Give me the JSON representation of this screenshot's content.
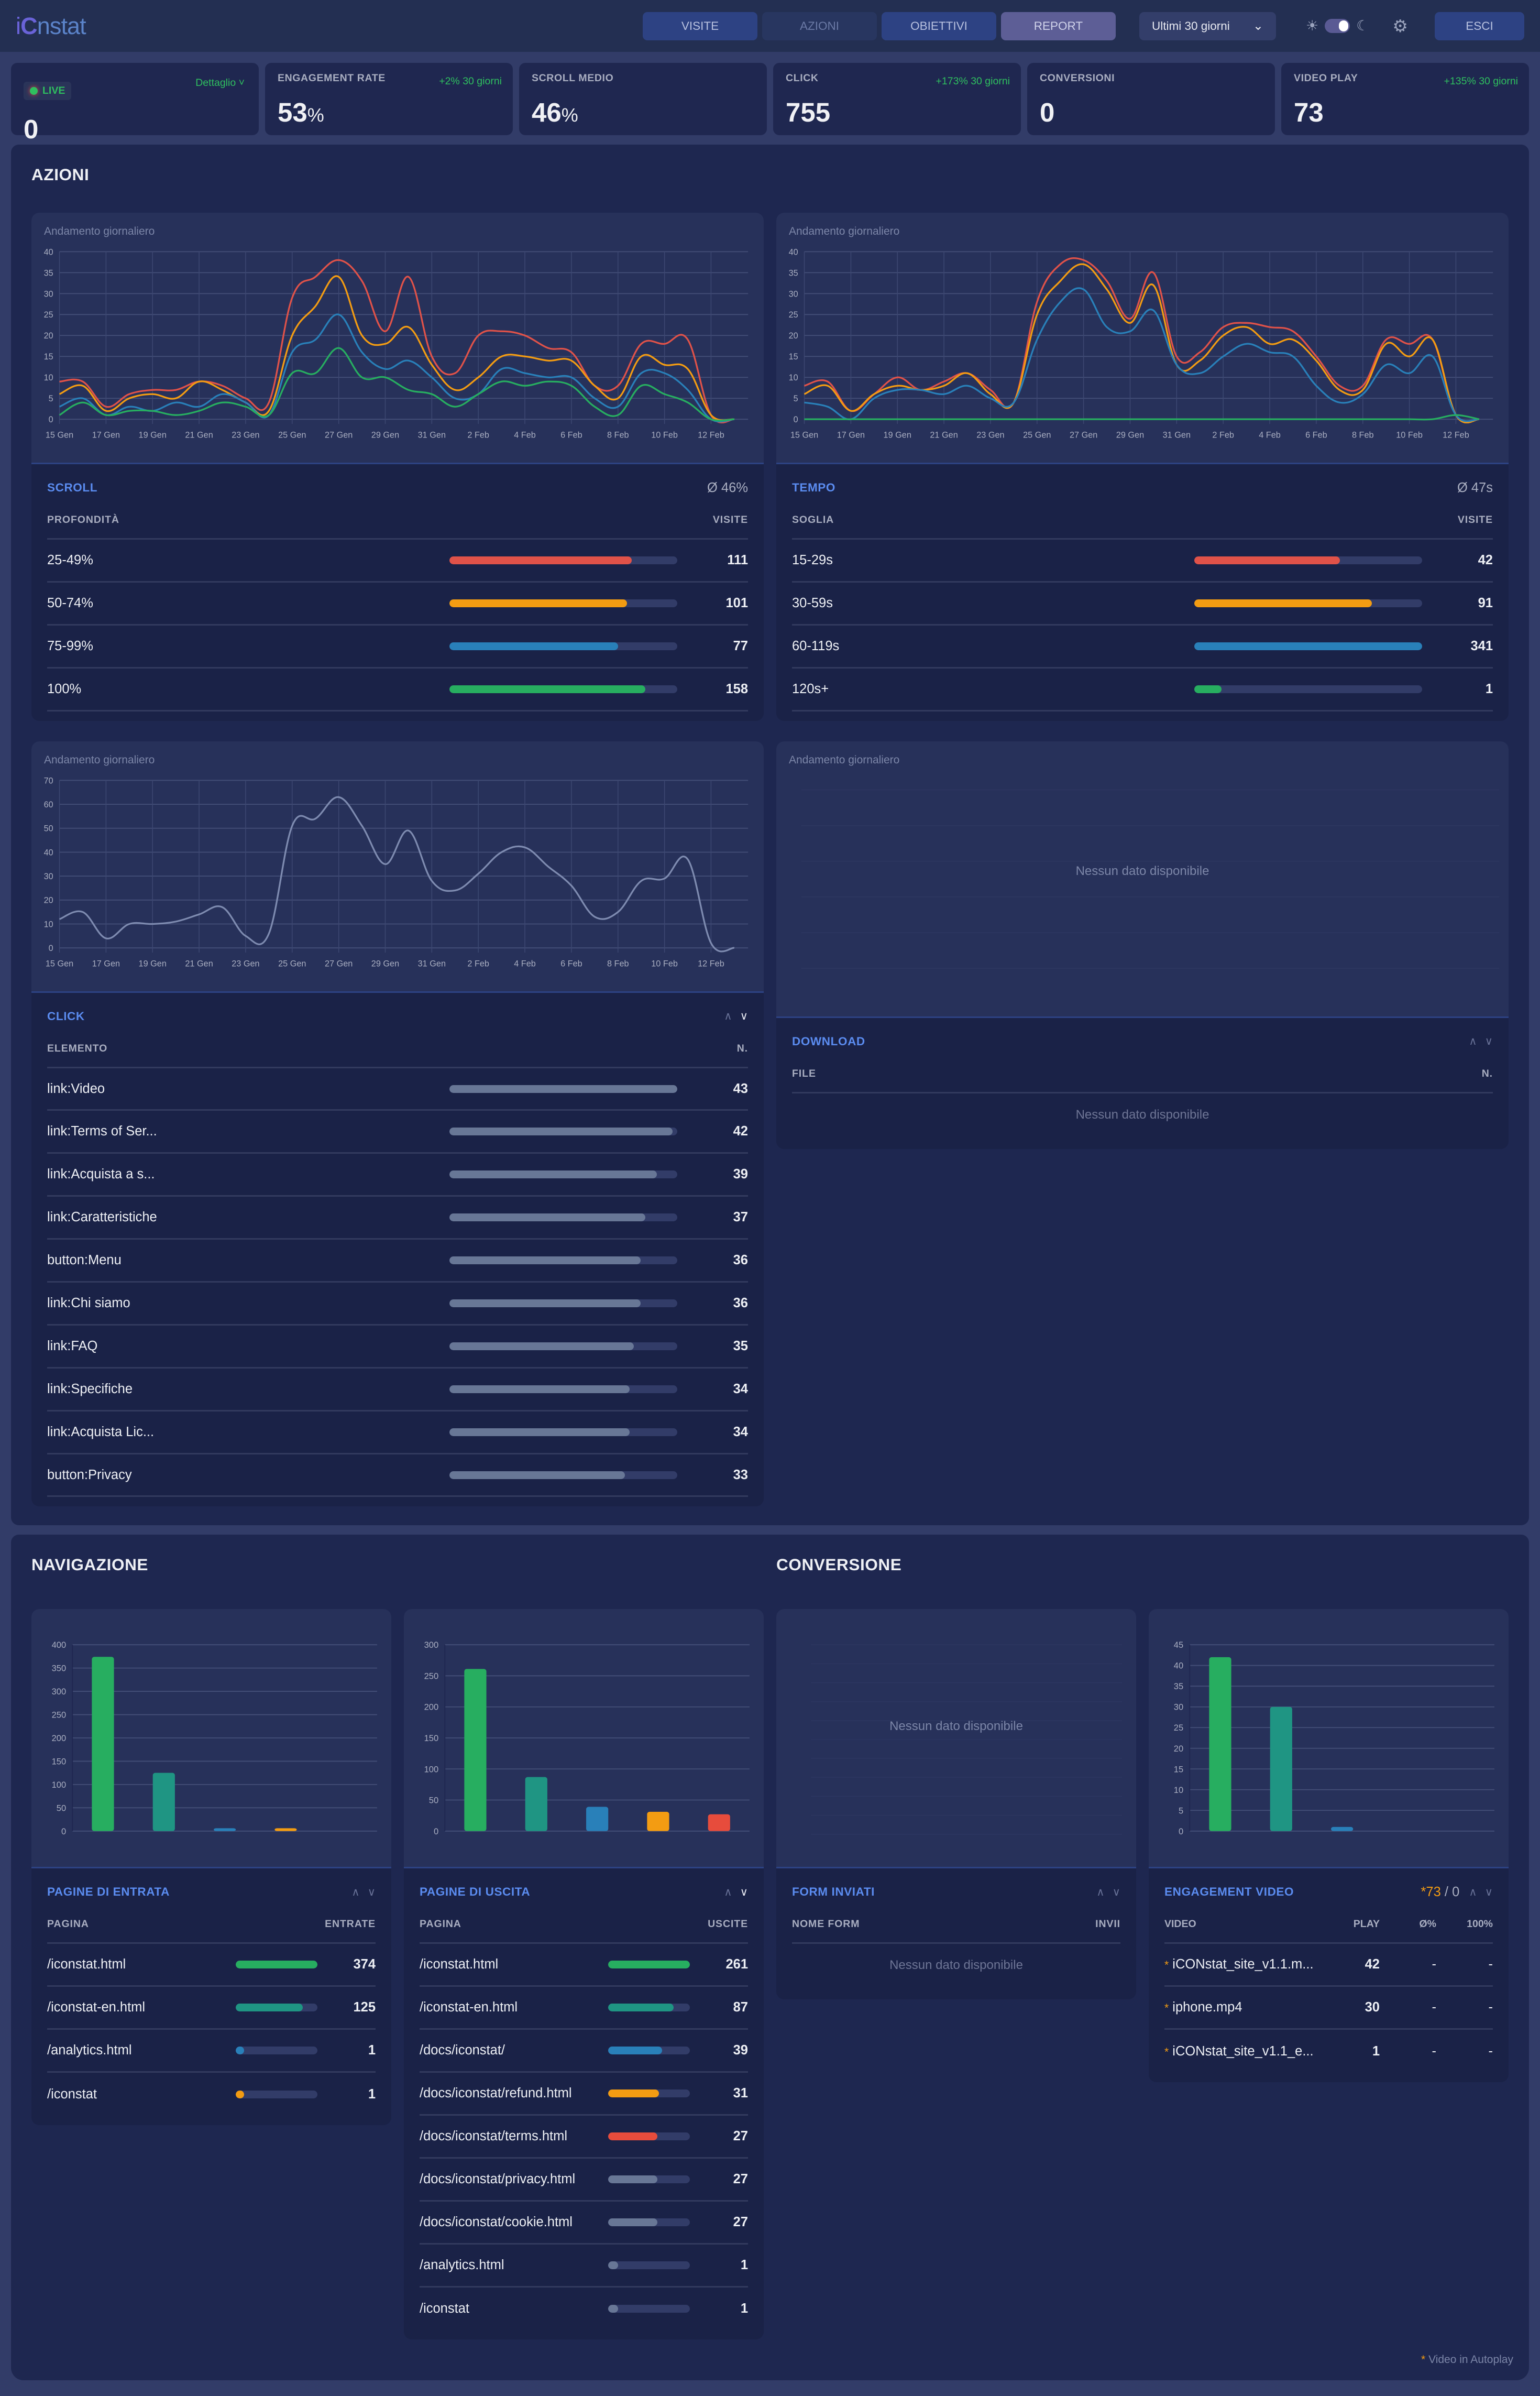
{
  "header": {
    "logo": {
      "i": "i",
      "c": "C",
      "rest": "nstat"
    },
    "tabs": [
      {
        "label": "VISITE",
        "key": "visite"
      },
      {
        "label": "AZIONI",
        "key": "azioni",
        "active": true
      },
      {
        "label": "OBIETTIVI",
        "key": "obiettivi"
      },
      {
        "label": "REPORT",
        "key": "report"
      }
    ],
    "range": {
      "value": "Ultimi 30 giorni",
      "icon": "chevron-down-icon"
    },
    "theme": {
      "sun_icon": "☀",
      "moon_icon": "☾",
      "state": "dark"
    },
    "settings_icon": "⚙",
    "logout_label": "ESCI"
  },
  "kpis": [
    {
      "key": "live",
      "label": "LIVE",
      "detail": "Dettaglio ˅",
      "value": "0"
    },
    {
      "key": "engagement",
      "label": "ENGAGEMENT RATE",
      "trend": "+2% 30 giorni",
      "value": "53",
      "unit": "%"
    },
    {
      "key": "scroll",
      "label": "SCROLL MEDIO",
      "trend": "",
      "value": "46",
      "unit": "%"
    },
    {
      "key": "click",
      "label": "CLICK",
      "trend": "+173% 30 giorni",
      "value": "755",
      "unit": ""
    },
    {
      "key": "conversioni",
      "label": "CONVERSIONI",
      "trend": "",
      "value": "0",
      "unit": ""
    },
    {
      "key": "video",
      "label": "VIDEO PLAY",
      "trend": "+135% 30 giorni",
      "value": "73",
      "unit": ""
    }
  ],
  "colors": {
    "red": "#e05249",
    "orange": "#f39c12",
    "blue": "#2980b9",
    "green": "#27ae60",
    "teal": "#1f9583",
    "gray": "#687796",
    "accent": "#5b8cf0"
  },
  "azioni": {
    "title": "AZIONI",
    "chart_title": "Andamento giornaliero",
    "scroll": {
      "title": "SCROLL",
      "summary": "Ø 46%",
      "col_left": "PROFONDITÀ",
      "col_right": "VISITE",
      "rows": [
        {
          "label": "25-49%",
          "value": "111",
          "pct": 80,
          "color": "#e05249"
        },
        {
          "label": "50-74%",
          "value": "101",
          "pct": 78,
          "color": "#f39c12"
        },
        {
          "label": "75-99%",
          "value": "77",
          "pct": 74,
          "color": "#2980b9"
        },
        {
          "label": "100%",
          "value": "158",
          "pct": 86,
          "color": "#27ae60"
        }
      ]
    },
    "tempo": {
      "title": "TEMPO",
      "summary": "Ø 47s",
      "col_left": "SOGLIA",
      "col_right": "VISITE",
      "rows": [
        {
          "label": "15-29s",
          "value": "42",
          "pct": 64,
          "color": "#e05249"
        },
        {
          "label": "30-59s",
          "value": "91",
          "pct": 78,
          "color": "#f39c12"
        },
        {
          "label": "60-119s",
          "value": "341",
          "pct": 100,
          "color": "#2980b9"
        },
        {
          "label": "120s+",
          "value": "1",
          "pct": 12,
          "color": "#27ae60"
        }
      ]
    },
    "click": {
      "title": "CLICK",
      "col_left": "ELEMENTO",
      "col_right": "N.",
      "rows": [
        {
          "label": "link:Video",
          "value": "43",
          "pct": 100
        },
        {
          "label": "link:Terms of Ser...",
          "value": "42",
          "pct": 98
        },
        {
          "label": "link:Acquista a s...",
          "value": "39",
          "pct": 91
        },
        {
          "label": "link:Caratteristiche",
          "value": "37",
          "pct": 86
        },
        {
          "label": "button:Menu",
          "value": "36",
          "pct": 84
        },
        {
          "label": "link:Chi siamo",
          "value": "36",
          "pct": 84
        },
        {
          "label": "link:FAQ",
          "value": "35",
          "pct": 81
        },
        {
          "label": "link:Specifiche",
          "value": "34",
          "pct": 79
        },
        {
          "label": "link:Acquista Lic...",
          "value": "34",
          "pct": 79
        },
        {
          "label": "button:Privacy",
          "value": "33",
          "pct": 77
        }
      ]
    },
    "download": {
      "title": "DOWNLOAD",
      "col_left": "FILE",
      "col_right": "N.",
      "empty": "Nessun dato disponibile",
      "chart_empty": "Nessun dato disponibile"
    }
  },
  "navigazione": {
    "title": "NAVIGAZIONE",
    "entrata": {
      "title": "PAGINE DI ENTRATA",
      "col_left": "PAGINA",
      "col_right": "ENTRATE",
      "rows": [
        {
          "label": "/iconstat.html",
          "value": "374",
          "pct": 100,
          "color": "#27ae60"
        },
        {
          "label": "/iconstat-en.html",
          "value": "125",
          "pct": 82,
          "color": "#1f9583"
        },
        {
          "label": "/analytics.html",
          "value": "1",
          "pct": 10,
          "color": "#2980b9"
        },
        {
          "label": "/iconstat",
          "value": "1",
          "pct": 10,
          "color": "#f39c12"
        }
      ]
    },
    "uscita": {
      "title": "PAGINE DI USCITA",
      "col_left": "PAGINA",
      "col_right": "USCITE",
      "rows": [
        {
          "label": "/iconstat.html",
          "value": "261",
          "pct": 100,
          "color": "#27ae60"
        },
        {
          "label": "/iconstat-en.html",
          "value": "87",
          "pct": 80,
          "color": "#1f9583"
        },
        {
          "label": "/docs/iconstat/",
          "value": "39",
          "pct": 66,
          "color": "#2980b9"
        },
        {
          "label": "/docs/iconstat/refund.html",
          "value": "31",
          "pct": 62,
          "color": "#f39c12"
        },
        {
          "label": "/docs/iconstat/terms.html",
          "value": "27",
          "pct": 60,
          "color": "#e74c3c"
        },
        {
          "label": "/docs/iconstat/privacy.html",
          "value": "27",
          "pct": 60,
          "color": "#687796"
        },
        {
          "label": "/docs/iconstat/cookie.html",
          "value": "27",
          "pct": 60,
          "color": "#687796"
        },
        {
          "label": "/analytics.html",
          "value": "1",
          "pct": 12,
          "color": "#687796"
        },
        {
          "label": "/iconstat",
          "value": "1",
          "pct": 12,
          "color": "#687796"
        }
      ]
    }
  },
  "conversione": {
    "title": "CONVERSIONE",
    "form": {
      "title": "FORM INVIATI",
      "col_left": "NOME FORM",
      "col_right": "INVII",
      "empty": "Nessun dato disponibile",
      "chart_empty": "Nessun dato disponibile"
    },
    "video": {
      "title": "ENGAGEMENT VIDEO",
      "summary_autoplay": "*73",
      "summary_sep": " / ",
      "summary_other": "0",
      "cols": [
        "VIDEO",
        "PLAY",
        "Ø%",
        "100%"
      ],
      "rows": [
        {
          "name": "iCONstat_site_v1.1.m...",
          "play": "42",
          "avg": "-",
          "full": "-"
        },
        {
          "name": "iphone.mp4",
          "play": "30",
          "avg": "-",
          "full": "-"
        },
        {
          "name": "iCONstat_site_v1.1_e...",
          "play": "1",
          "avg": "-",
          "full": "-"
        }
      ]
    },
    "footnote_star": "*",
    "footnote": "Video in Autoplay"
  },
  "chart_data": [
    {
      "type": "line",
      "id": "scroll-daily",
      "title": "Andamento giornaliero",
      "x": [
        "15 Gen",
        "16 Gen",
        "17 Gen",
        "18 Gen",
        "19 Gen",
        "20 Gen",
        "21 Gen",
        "22 Gen",
        "23 Gen",
        "24 Gen",
        "25 Gen",
        "26 Gen",
        "27 Gen",
        "28 Gen",
        "29 Gen",
        "30 Gen",
        "31 Gen",
        "1 Feb",
        "2 Feb",
        "3 Feb",
        "4 Feb",
        "5 Feb",
        "6 Feb",
        "7 Feb",
        "8 Feb",
        "9 Feb",
        "10 Feb",
        "11 Feb",
        "12 Feb",
        "13 Feb"
      ],
      "xticks": [
        "15 Gen",
        "17 Gen",
        "19 Gen",
        "21 Gen",
        "23 Gen",
        "25 Gen",
        "27 Gen",
        "29 Gen",
        "31 Gen",
        "2 Feb",
        "4 Feb",
        "6 Feb",
        "8 Feb",
        "10 Feb",
        "12 Feb"
      ],
      "ylim": [
        0,
        40
      ],
      "yticks": [
        0,
        5,
        10,
        15,
        20,
        25,
        30,
        35,
        40
      ],
      "grid": true,
      "series": [
        {
          "name": "25-49%",
          "color": "#e05249",
          "values": [
            9,
            9,
            3,
            6,
            7,
            7,
            9,
            8,
            5,
            4,
            29,
            34,
            38,
            33,
            21,
            34,
            15,
            11,
            20,
            21,
            20,
            17,
            16,
            8,
            8,
            18,
            18,
            19,
            1,
            0
          ]
        },
        {
          "name": "50-74%",
          "color": "#f39c12",
          "values": [
            6,
            8,
            2,
            5,
            6,
            5,
            9,
            7,
            4,
            2,
            20,
            27,
            34,
            20,
            18,
            22,
            13,
            7,
            10,
            15,
            15,
            14,
            14,
            8,
            5,
            15,
            13,
            12,
            1,
            0
          ]
        },
        {
          "name": "75-99%",
          "color": "#2980b9",
          "values": [
            3,
            5,
            1,
            3,
            2,
            4,
            3,
            6,
            4,
            1,
            16,
            19,
            25,
            16,
            12,
            14,
            10,
            5,
            6,
            12,
            11,
            10,
            10,
            5,
            3,
            11,
            11,
            7,
            0,
            0
          ]
        },
        {
          "name": "100%",
          "color": "#27ae60",
          "values": [
            1,
            4,
            1,
            2,
            2,
            1,
            2,
            4,
            3,
            1,
            11,
            11,
            17,
            10,
            10,
            7,
            6,
            3,
            6,
            9,
            8,
            9,
            8,
            3,
            1,
            8,
            6,
            4,
            0,
            0
          ]
        }
      ]
    },
    {
      "type": "line",
      "id": "tempo-daily",
      "title": "Andamento giornaliero",
      "x": [
        "15 Gen",
        "16 Gen",
        "17 Gen",
        "18 Gen",
        "19 Gen",
        "20 Gen",
        "21 Gen",
        "22 Gen",
        "23 Gen",
        "24 Gen",
        "25 Gen",
        "26 Gen",
        "27 Gen",
        "28 Gen",
        "29 Gen",
        "30 Gen",
        "31 Gen",
        "1 Feb",
        "2 Feb",
        "3 Feb",
        "4 Feb",
        "5 Feb",
        "6 Feb",
        "7 Feb",
        "8 Feb",
        "9 Feb",
        "10 Feb",
        "11 Feb",
        "12 Feb",
        "13 Feb"
      ],
      "ylim": [
        0,
        40
      ],
      "yticks": [
        0,
        5,
        10,
        15,
        20,
        25,
        30,
        35,
        40
      ],
      "grid": true,
      "series": [
        {
          "name": "15-29s",
          "color": "#e05249",
          "values": [
            8,
            9,
            2,
            6,
            10,
            7,
            9,
            11,
            7,
            4,
            28,
            37,
            38,
            33,
            24,
            35,
            15,
            16,
            22,
            23,
            22,
            21,
            15,
            8,
            8,
            19,
            18,
            19,
            1,
            0
          ]
        },
        {
          "name": "30-59s",
          "color": "#f39c12",
          "values": [
            6,
            8,
            2,
            6,
            8,
            7,
            8,
            11,
            6,
            4,
            25,
            33,
            37,
            31,
            23,
            32,
            13,
            14,
            20,
            22,
            18,
            19,
            14,
            7,
            7,
            18,
            15,
            19,
            1,
            0
          ]
        },
        {
          "name": "60-119s",
          "color": "#2980b9",
          "values": [
            4,
            3,
            0,
            5,
            7,
            7,
            6,
            8,
            5,
            4,
            19,
            28,
            31,
            22,
            21,
            26,
            13,
            11,
            15,
            18,
            16,
            15,
            8,
            4,
            6,
            13,
            11,
            15,
            1,
            0
          ]
        },
        {
          "name": "120s+",
          "color": "#27ae60",
          "values": [
            0,
            0,
            0,
            0,
            0,
            0,
            0,
            0,
            0,
            0,
            0,
            0,
            0,
            0,
            0,
            0,
            0,
            0,
            0,
            0,
            0,
            0,
            0,
            0,
            0,
            0,
            0,
            0,
            1,
            0
          ]
        }
      ]
    },
    {
      "type": "line",
      "id": "click-daily",
      "title": "Andamento giornaliero",
      "x": [
        "15 Gen",
        "16 Gen",
        "17 Gen",
        "18 Gen",
        "19 Gen",
        "20 Gen",
        "21 Gen",
        "22 Gen",
        "23 Gen",
        "24 Gen",
        "25 Gen",
        "26 Gen",
        "27 Gen",
        "28 Gen",
        "29 Gen",
        "30 Gen",
        "31 Gen",
        "1 Feb",
        "2 Feb",
        "3 Feb",
        "4 Feb",
        "5 Feb",
        "6 Feb",
        "7 Feb",
        "8 Feb",
        "9 Feb",
        "10 Feb",
        "11 Feb",
        "12 Feb",
        "13 Feb"
      ],
      "ylim": [
        0,
        70
      ],
      "yticks": [
        0,
        10,
        20,
        30,
        40,
        50,
        60,
        70
      ],
      "grid": true,
      "series": [
        {
          "name": "Click",
          "color": "#7e8bb0",
          "values": [
            12,
            15,
            4,
            10,
            10,
            11,
            14,
            17,
            5,
            6,
            51,
            54,
            63,
            51,
            35,
            49,
            28,
            24,
            31,
            40,
            42,
            34,
            26,
            13,
            15,
            28,
            29,
            37,
            2,
            0
          ]
        }
      ]
    },
    {
      "type": "line",
      "id": "download-daily",
      "title": "Andamento giornaliero",
      "ylim": [
        0,
        1
      ],
      "yticks": [
        0,
        1
      ],
      "annotation": "Nessun dato disponibile",
      "series": []
    },
    {
      "type": "bar",
      "id": "entry-pages",
      "categories": [
        "/iconstat.html",
        "/iconstat-en.html",
        "/analytics.html",
        "/iconstat"
      ],
      "values": [
        374,
        125,
        1,
        1
      ],
      "colors": [
        "#27ae60",
        "#1f9583",
        "#2980b9",
        "#f39c12"
      ],
      "ylim": [
        0,
        400
      ],
      "yticks": [
        0,
        50,
        100,
        150,
        200,
        250,
        300,
        350,
        400
      ]
    },
    {
      "type": "bar",
      "id": "exit-pages",
      "categories": [
        "/iconstat.html",
        "/iconstat-en.html",
        "/docs/iconstat/",
        "/docs/iconstat/refund.html",
        "/docs/iconstat/terms.html"
      ],
      "values": [
        261,
        87,
        39,
        31,
        27
      ],
      "colors": [
        "#27ae60",
        "#1f9583",
        "#2980b9",
        "#f39c12",
        "#e74c3c"
      ],
      "ylim": [
        0,
        300
      ],
      "yticks": [
        0,
        50,
        100,
        150,
        200,
        250,
        300
      ]
    },
    {
      "type": "bar",
      "id": "forms",
      "categories": [],
      "values": [],
      "ylim": [
        0,
        1
      ],
      "yticks": [
        "0",
        "0,1",
        "0,2",
        "0,3",
        "0,4",
        "0,5",
        "0,6",
        "0,7",
        "0,8",
        "0,9",
        "1,0"
      ],
      "annotation": "Nessun dato disponibile"
    },
    {
      "type": "bar",
      "id": "video-engagement",
      "categories": [
        "iCONstat_site_v1.1.m...",
        "iphone.mp4",
        "iCONstat_site_v1.1_e..."
      ],
      "values": [
        42,
        30,
        1
      ],
      "colors": [
        "#27ae60",
        "#1f9583",
        "#2980b9"
      ],
      "ylim": [
        0,
        45
      ],
      "yticks": [
        0,
        5,
        10,
        15,
        20,
        25,
        30,
        35,
        40,
        45
      ]
    }
  ]
}
